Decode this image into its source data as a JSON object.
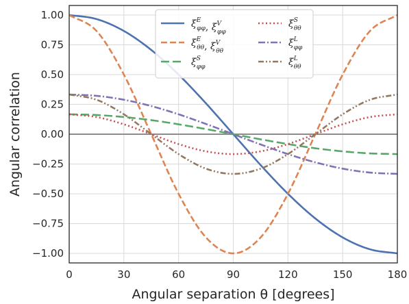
{
  "chart_data": {
    "type": "line",
    "title": "",
    "xlabel": "Angular separation θ [degrees]",
    "ylabel": "Angular correlation",
    "xlim": [
      0,
      180
    ],
    "ylim": [
      -1.08,
      1.08
    ],
    "xticks": [
      0,
      30,
      60,
      90,
      120,
      150,
      180
    ],
    "xtick_labels": [
      "0",
      "30",
      "60",
      "90",
      "120",
      "150",
      "180"
    ],
    "yticks": [
      -1.0,
      -0.75,
      -0.5,
      -0.25,
      0.0,
      0.25,
      0.5,
      0.75,
      1.0
    ],
    "ytick_labels": [
      "−1.00",
      "−0.75",
      "−0.50",
      "−0.25",
      "0.00",
      "0.25",
      "0.50",
      "0.75",
      "1.00"
    ],
    "grid": true,
    "zero_line": true,
    "legend_position": "top-center",
    "legend_columns": 2,
    "series": [
      {
        "name": "ξ^E_φφ, ξ^V_φφ",
        "legend": [
          {
            "sym": "ξ",
            "sup": "E",
            "sub": "φφ"
          },
          {
            "sym": "ξ",
            "sup": "V",
            "sub": "φφ"
          }
        ],
        "color": "#4c72b0",
        "dash": "solid",
        "x": [
          0,
          15,
          30,
          45,
          60,
          75,
          90,
          105,
          120,
          135,
          150,
          165,
          180
        ],
        "y": [
          1.0,
          0.966,
          0.866,
          0.707,
          0.5,
          0.259,
          0.0,
          -0.259,
          -0.5,
          -0.707,
          -0.866,
          -0.966,
          -1.0
        ]
      },
      {
        "name": "ξ^E_θθ, ξ^V_θθ",
        "legend": [
          {
            "sym": "ξ",
            "sup": "E",
            "sub": "θθ"
          },
          {
            "sym": "ξ",
            "sup": "V",
            "sub": "θθ"
          }
        ],
        "color": "#dd8452",
        "dash": "dashed",
        "x": [
          0,
          15,
          30,
          45,
          60,
          75,
          90,
          105,
          120,
          135,
          150,
          165,
          180
        ],
        "y": [
          1.0,
          0.866,
          0.5,
          0.0,
          -0.5,
          -0.866,
          -1.0,
          -0.866,
          -0.5,
          0.0,
          0.5,
          0.866,
          1.0
        ]
      },
      {
        "name": "ξ^S_φφ",
        "legend": [
          {
            "sym": "ξ",
            "sup": "S",
            "sub": "φφ"
          }
        ],
        "color": "#55a868",
        "dash": "longdash",
        "x": [
          0,
          15,
          30,
          45,
          60,
          75,
          90,
          105,
          120,
          135,
          150,
          165,
          180
        ],
        "y": [
          0.167,
          0.161,
          0.144,
          0.118,
          0.083,
          0.043,
          0.0,
          -0.043,
          -0.083,
          -0.118,
          -0.144,
          -0.161,
          -0.167
        ]
      },
      {
        "name": "ξ^S_θθ",
        "legend": [
          {
            "sym": "ξ",
            "sup": "S",
            "sub": "θθ"
          }
        ],
        "color": "#c44e52",
        "dash": "dotted",
        "x": [
          0,
          15,
          30,
          45,
          60,
          75,
          90,
          105,
          120,
          135,
          150,
          165,
          180
        ],
        "y": [
          0.167,
          0.144,
          0.083,
          0.0,
          -0.083,
          -0.144,
          -0.167,
          -0.144,
          -0.083,
          0.0,
          0.083,
          0.144,
          0.167
        ]
      },
      {
        "name": "ξ^L_φφ",
        "legend": [
          {
            "sym": "ξ",
            "sup": "L",
            "sub": "φφ"
          }
        ],
        "color": "#8172b3",
        "dash": "dashdot",
        "x": [
          0,
          15,
          30,
          45,
          60,
          75,
          90,
          105,
          120,
          135,
          150,
          165,
          180
        ],
        "y": [
          0.333,
          0.322,
          0.289,
          0.236,
          0.167,
          0.086,
          0.0,
          -0.086,
          -0.167,
          -0.236,
          -0.289,
          -0.322,
          -0.333
        ]
      },
      {
        "name": "ξ^L_θθ",
        "legend": [
          {
            "sym": "ξ",
            "sup": "L",
            "sub": "θθ"
          }
        ],
        "color": "#937860",
        "dash": "dashdotdot",
        "x": [
          0,
          15,
          30,
          45,
          60,
          75,
          90,
          105,
          120,
          135,
          150,
          165,
          180
        ],
        "y": [
          0.333,
          0.289,
          0.167,
          0.0,
          -0.167,
          -0.289,
          -0.333,
          -0.289,
          -0.167,
          0.0,
          0.167,
          0.289,
          0.333
        ]
      }
    ]
  },
  "colors": {
    "grid": "#dcdcdc",
    "zero_line": "#8c8c8c",
    "frame": "#262626",
    "legend_border": "#cccccc"
  }
}
